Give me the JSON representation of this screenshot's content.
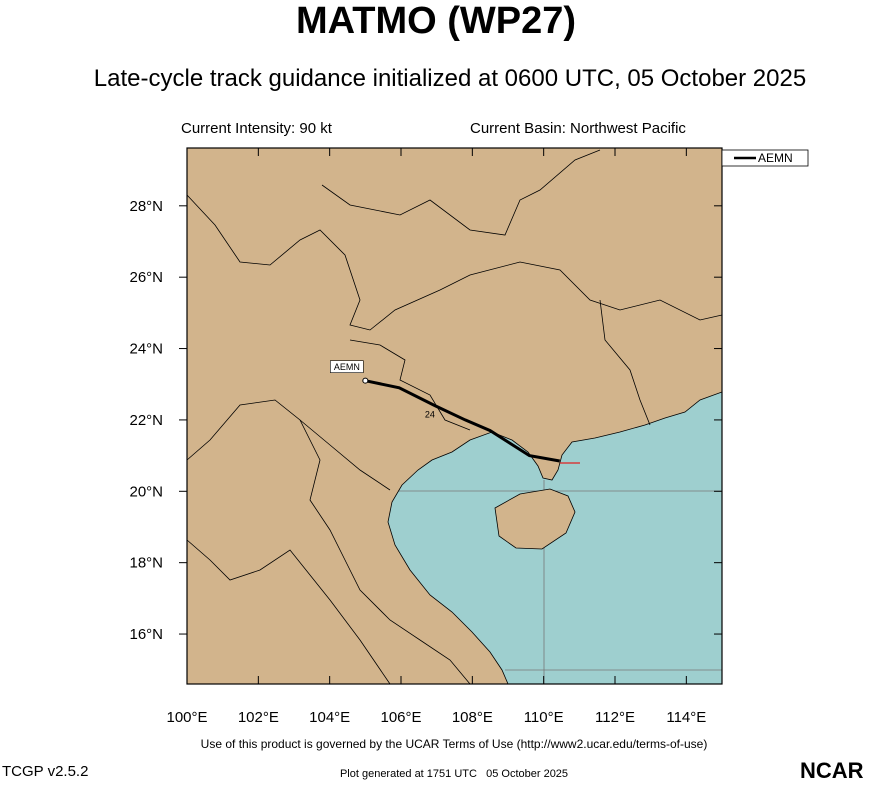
{
  "chart_data": {
    "type": "map",
    "title": "MATMO (WP27)",
    "subtitle": "Late-cycle track guidance initialized at 0600 UTC, 05 October 2025",
    "current_intensity": "Current Intensity: 90 kt",
    "current_basin": "Current Basin: Northwest Pacific",
    "xlim": [
      100,
      115
    ],
    "ylim": [
      14.6,
      29.62
    ],
    "xticks": [
      {
        "value": 100,
        "label": "100°E"
      },
      {
        "value": 102,
        "label": "102°E"
      },
      {
        "value": 104,
        "label": "104°E"
      },
      {
        "value": 106,
        "label": "106°E"
      },
      {
        "value": 108,
        "label": "108°E"
      },
      {
        "value": 110,
        "label": "110°E"
      },
      {
        "value": 112,
        "label": "112°E"
      },
      {
        "value": 114,
        "label": "114°E"
      }
    ],
    "yticks": [
      {
        "value": 16,
        "label": "16°N"
      },
      {
        "value": 18,
        "label": "18°N"
      },
      {
        "value": 20,
        "label": "20°N"
      },
      {
        "value": 22,
        "label": "22°N"
      },
      {
        "value": 24,
        "label": "24°N"
      },
      {
        "value": 26,
        "label": "26°N"
      },
      {
        "value": 28,
        "label": "28°N"
      }
    ],
    "series": [
      {
        "name": "AEMN",
        "color": "#000000",
        "x": [
          110.45,
          109.6,
          108.5,
          107.8,
          106.95,
          105.95,
          105.0
        ],
        "y": [
          20.85,
          21.0,
          21.7,
          22.0,
          22.4,
          22.9,
          23.1
        ]
      }
    ],
    "annotations": [
      "24"
    ]
  },
  "footer": {
    "terms": "Use of this product is governed by the UCAR Terms of Use (http://www2.ucar.edu/terms-of-use)",
    "version": "TCGP v2.5.2",
    "generated": "Plot generated at 1751 UTC   05 October 2025",
    "logo": "NCAR"
  }
}
